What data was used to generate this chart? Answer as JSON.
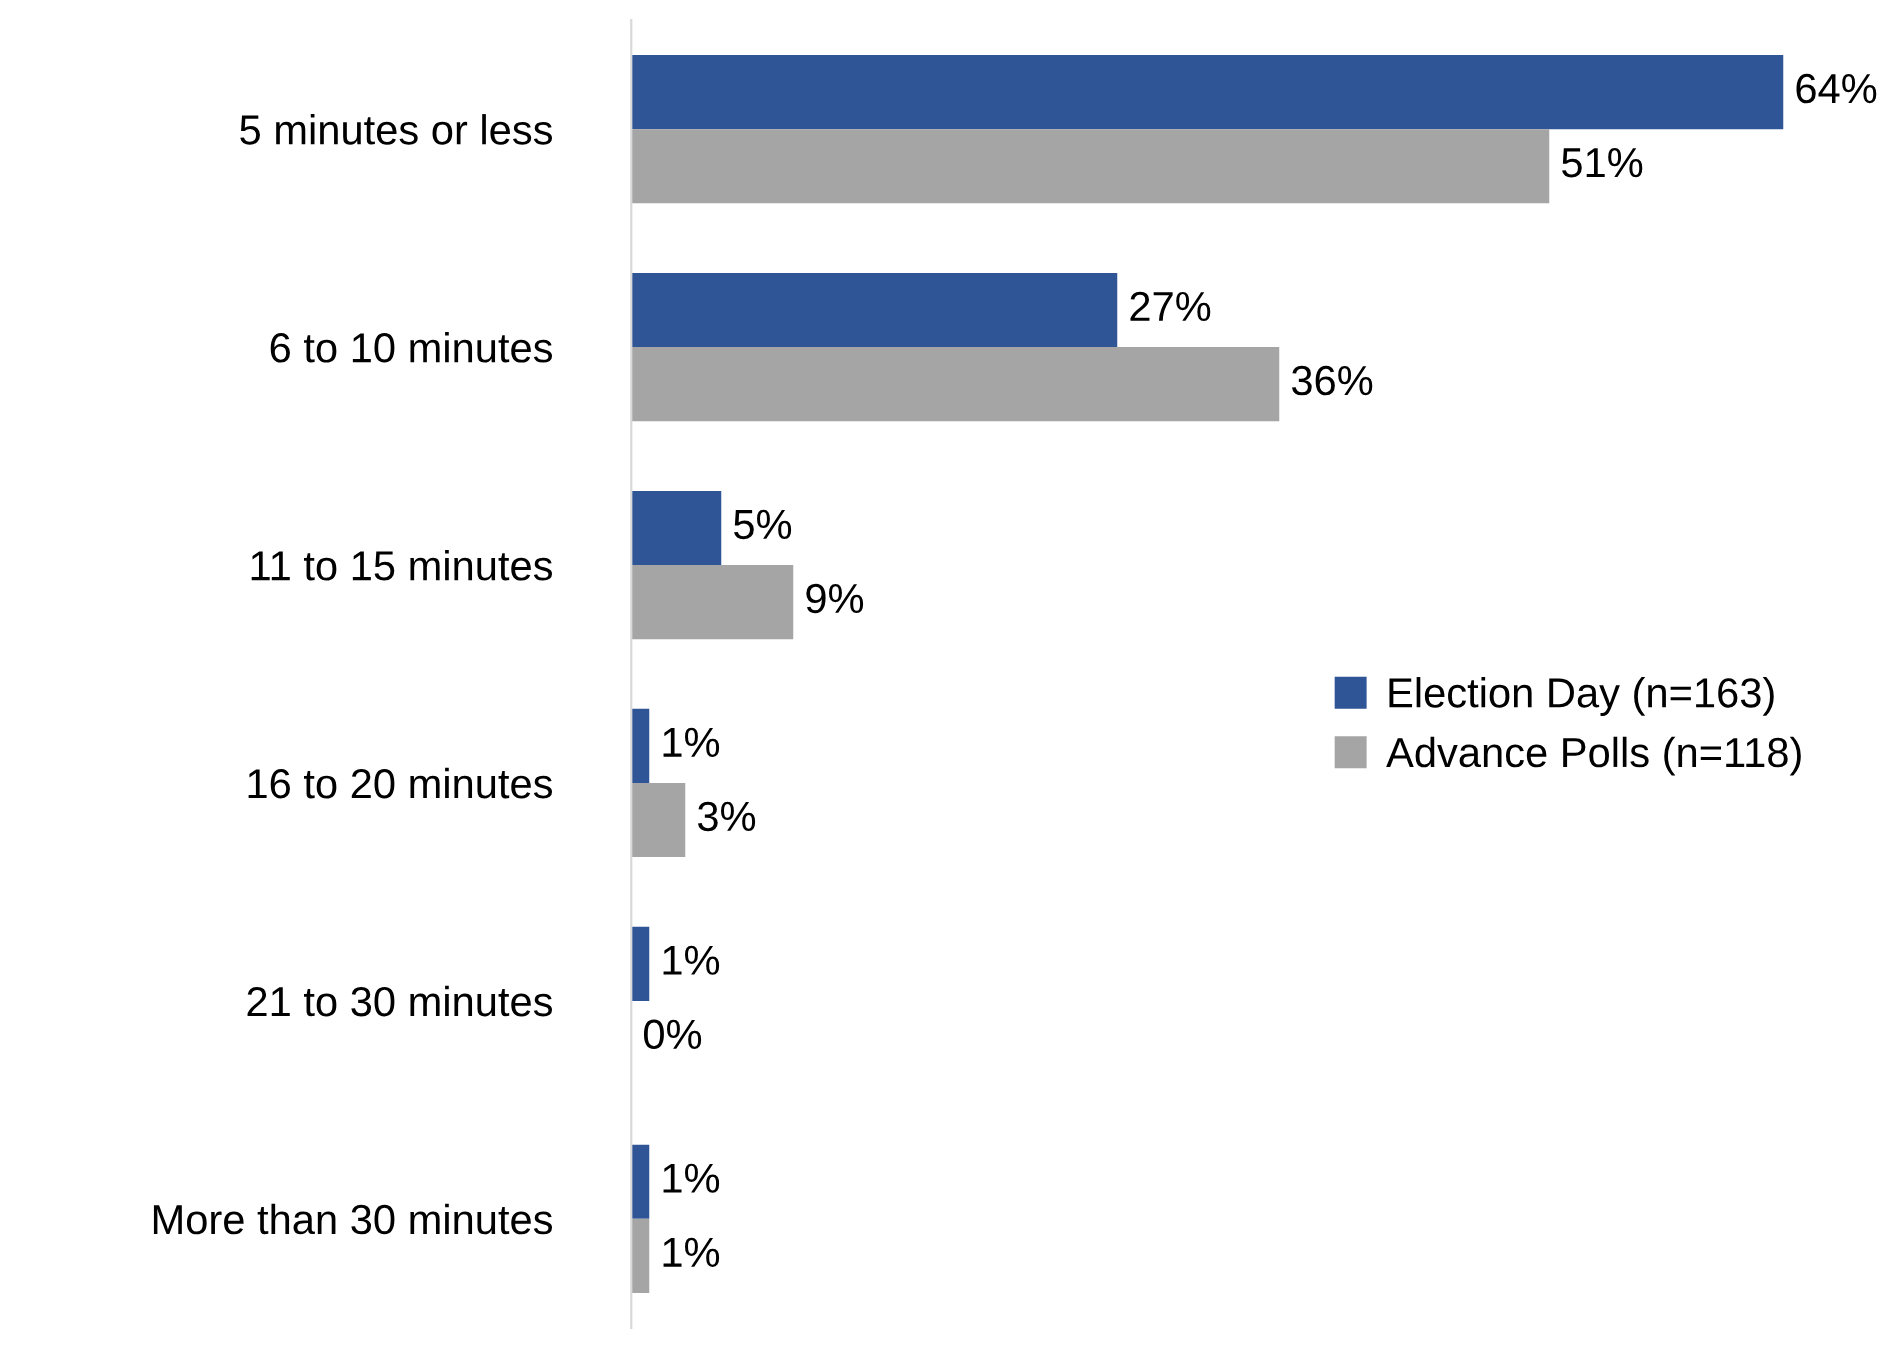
{
  "chart_data": {
    "type": "bar",
    "orientation": "horizontal",
    "categories": [
      "5 minutes or less",
      "6 to 10 minutes",
      "11 to 15 minutes",
      "16 to 20 minutes",
      "21 to 30 minutes",
      "More than 30 minutes"
    ],
    "series": [
      {
        "name": "Election Day (n=163)",
        "color": "#2f5597",
        "values": [
          64,
          27,
          5,
          1,
          1,
          1
        ],
        "value_labels": [
          "64%",
          "27%",
          "5%",
          "1%",
          "1%",
          "1%"
        ]
      },
      {
        "name": "Advance Polls (n=118)",
        "color": "#a5a5a5",
        "values": [
          51,
          36,
          9,
          3,
          0,
          1
        ],
        "value_labels": [
          "51%",
          "36%",
          "9%",
          "3%",
          "0%",
          "1%"
        ]
      }
    ],
    "tick_labels": "y",
    "legend": "right",
    "grid": false
  }
}
